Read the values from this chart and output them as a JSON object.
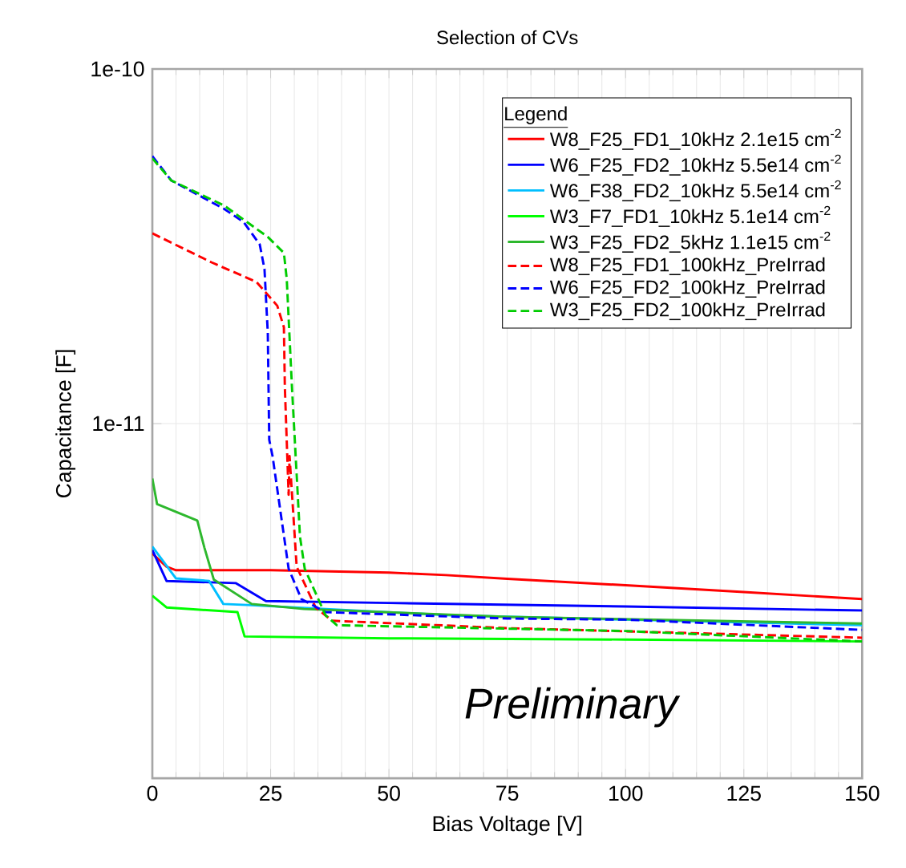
{
  "chart_data": {
    "type": "line",
    "title": "Selection of CVs",
    "xlabel": "Bias Voltage [V]",
    "ylabel": "Capacitance [F]",
    "legend_title": "Legend",
    "annotations": [
      "Preliminary"
    ],
    "log": "y",
    "grid": true,
    "legend": "top right",
    "xlim": [
      0,
      150
    ],
    "xticks": [
      0,
      25,
      50,
      75,
      100,
      125,
      150
    ],
    "ylim": [
      1e-12,
      1e-10
    ],
    "yticks": [
      {
        "value": 1e-10,
        "label": "1e-10"
      },
      {
        "value": 1e-11,
        "label": "1e-11"
      }
    ],
    "series": [
      {
        "name": "W8_F25_FD1_10kHz  2.1e15 cm$^{-2}$",
        "color": "#ff0000",
        "line_style": "solid",
        "x": [
          0,
          3,
          5,
          25,
          50,
          62,
          75,
          100,
          125,
          150
        ],
        "values": [
          4.3e-12,
          3.95e-12,
          3.86e-12,
          3.86e-12,
          3.8e-12,
          3.74e-12,
          3.65e-12,
          3.5e-12,
          3.35e-12,
          3.2e-12
        ]
      },
      {
        "name": "W6_F25_FD2_10kHz  5.5e14 cm$^{-2}$",
        "color": "#0000ff",
        "line_style": "solid",
        "x": [
          0,
          3,
          17.6,
          24,
          50,
          100,
          150
        ],
        "values": [
          4.4e-12,
          3.6e-12,
          3.55e-12,
          3.16e-12,
          3.12e-12,
          3.05e-12,
          2.97e-12
        ]
      },
      {
        "name": "W6_F38_FD2_10kHz  5.5e14 cm$^{-2}$",
        "color": "#00bfff",
        "line_style": "solid",
        "x": [
          0,
          5,
          12,
          15,
          20,
          63,
          100,
          150
        ],
        "values": [
          4.5e-12,
          3.66e-12,
          3.6e-12,
          3.1e-12,
          3.08e-12,
          2.88e-12,
          2.8e-12,
          2.7e-12
        ]
      },
      {
        "name": "W3_F7_FD1_10kHz  5.1e14 cm$^{-2}$",
        "color": "#00ff00",
        "line_style": "solid",
        "x": [
          0,
          3,
          18,
          19.5,
          50,
          100,
          150
        ],
        "values": [
          3.27e-12,
          3.03e-12,
          2.94e-12,
          2.51e-12,
          2.48e-12,
          2.46e-12,
          2.43e-12
        ]
      },
      {
        "name": "W3_F25_FD2_5kHz  1.1e15 cm$^{-2}$",
        "color": "#2db82d",
        "line_style": "solid",
        "x": [
          0,
          1,
          9.5,
          11,
          13,
          21,
          32,
          75,
          150
        ],
        "values": [
          7e-12,
          5.93e-12,
          5.33e-12,
          4.47e-12,
          3.63e-12,
          3.1e-12,
          3e-12,
          2.85e-12,
          2.73e-12
        ]
      },
      {
        "name": "W8_F25_FD1_100kHz_PreIrrad",
        "color": "#ff0000",
        "line_style": "dashed",
        "x": [
          0,
          12.5,
          22,
          26.4,
          27.8,
          28,
          28.8,
          29,
          30.5,
          34.5,
          38,
          75,
          150
        ],
        "values": [
          3.44e-11,
          2.85e-11,
          2.51e-11,
          2.15e-11,
          1.87e-11,
          1.27e-11,
          6.3e-12,
          8.1e-12,
          3.95e-12,
          3.03e-12,
          2.78e-12,
          2.65e-12,
          2.49e-12
        ]
      },
      {
        "name": "W6_F25_FD2_100kHz_PreIrrad",
        "color": "#0000ff",
        "line_style": "dashed",
        "x": [
          0,
          4,
          15.2,
          19.3,
          22.7,
          23.7,
          24.4,
          24.7,
          25.4,
          28.8,
          31.5,
          36.6,
          75,
          100,
          150
        ],
        "values": [
          5.68e-11,
          4.85e-11,
          4.03e-11,
          3.7e-11,
          3.2e-11,
          2.73e-11,
          1.8e-11,
          9e-12,
          8.1e-12,
          3.9e-12,
          3.2e-12,
          2.94e-12,
          2.82e-12,
          2.8e-12,
          2.62e-12
        ]
      },
      {
        "name": "W3_F25_FD2_100kHz_PreIrrad",
        "color": "#00cc00",
        "line_style": "dashed",
        "x": [
          0,
          4,
          15.2,
          24.4,
          27.8,
          28.4,
          29.5,
          31.2,
          32.2,
          36.6,
          39,
          100,
          150
        ],
        "values": [
          5.6e-11,
          4.85e-11,
          4.12e-11,
          3.36e-11,
          3.03e-11,
          2.56e-11,
          1.27e-11,
          4.8e-12,
          3.9e-12,
          2.88e-12,
          2.7e-12,
          2.6e-12,
          2.43e-12
        ]
      }
    ]
  }
}
